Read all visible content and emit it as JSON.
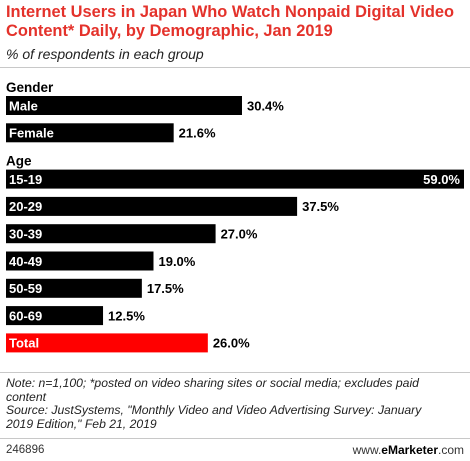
{
  "header": {
    "title": "Internet Users in Japan Who Watch Nonpaid Digital Video Content* Daily, by Demographic, Jan 2019",
    "subtitle": "% of respondents in each group"
  },
  "footer": {
    "note": "Note: n=1,100; *posted on video sharing sites or social media; excludes paid content",
    "source": "Source: JustSystems, \"Monthly Video and Video Advertising Survey: January 2019 Edition,\" Feb 21, 2019",
    "chart_id": "246896",
    "brand_prefix": "www.",
    "brand_name": "eMarketer",
    "brand_suffix": ".com"
  },
  "colors": {
    "title": "#e4322b",
    "bar": "#000000",
    "total_bar": "#ff0000",
    "label_text": "#ffffff",
    "value_text": "#000000"
  },
  "chart_data": {
    "type": "bar",
    "orientation": "horizontal",
    "title": "Internet Users in Japan Who Watch Nonpaid Digital Video Content* Daily, by Demographic, Jan 2019",
    "subtitle": "% of respondents in each group",
    "unit": "%",
    "xlim": [
      0,
      59
    ],
    "grid": false,
    "legend": "none",
    "groups": [
      {
        "name": "Gender",
        "categories": [
          "Male",
          "Female"
        ],
        "values": [
          30.4,
          21.6
        ],
        "labels": [
          "30.4%",
          "21.6%"
        ]
      },
      {
        "name": "Age",
        "categories": [
          "15-19",
          "20-29",
          "30-39",
          "40-49",
          "50-59",
          "60-69",
          "Total"
        ],
        "values": [
          59.0,
          37.5,
          27.0,
          19.0,
          17.5,
          12.5,
          26.0
        ],
        "labels": [
          "59.0%",
          "37.5%",
          "27.0%",
          "19.0%",
          "17.5%",
          "12.5%",
          "26.0%"
        ],
        "highlight": [
          "Total"
        ]
      }
    ]
  }
}
